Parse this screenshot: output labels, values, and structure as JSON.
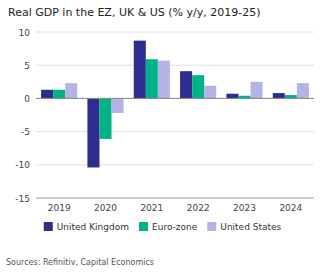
{
  "chart_data": {
    "type": "bar",
    "title": "Real GDP in the EZ, UK & US (% y/y, 2019-25)",
    "annotations": [
      "Sources: Refinitiv, Capital Economics"
    ],
    "categories": [
      "2019",
      "2020",
      "2021",
      "2022",
      "2023",
      "2024"
    ],
    "series": [
      {
        "name": "United Kingdom",
        "color": "#2d2d8f",
        "values": [
          1.3,
          -10.4,
          8.7,
          4.1,
          0.7,
          0.8
        ]
      },
      {
        "name": "Euro-zone",
        "color": "#00b386",
        "values": [
          1.3,
          -6.1,
          5.9,
          3.5,
          0.4,
          0.5
        ]
      },
      {
        "name": "United States",
        "color": "#b3b3e6",
        "values": [
          2.3,
          -2.2,
          5.7,
          1.9,
          2.5,
          2.3
        ]
      }
    ],
    "ylim": [
      -15,
      10
    ],
    "yticks": [
      -15,
      -10,
      -5,
      0,
      5,
      10
    ],
    "grid": true,
    "legend": "bottom"
  }
}
